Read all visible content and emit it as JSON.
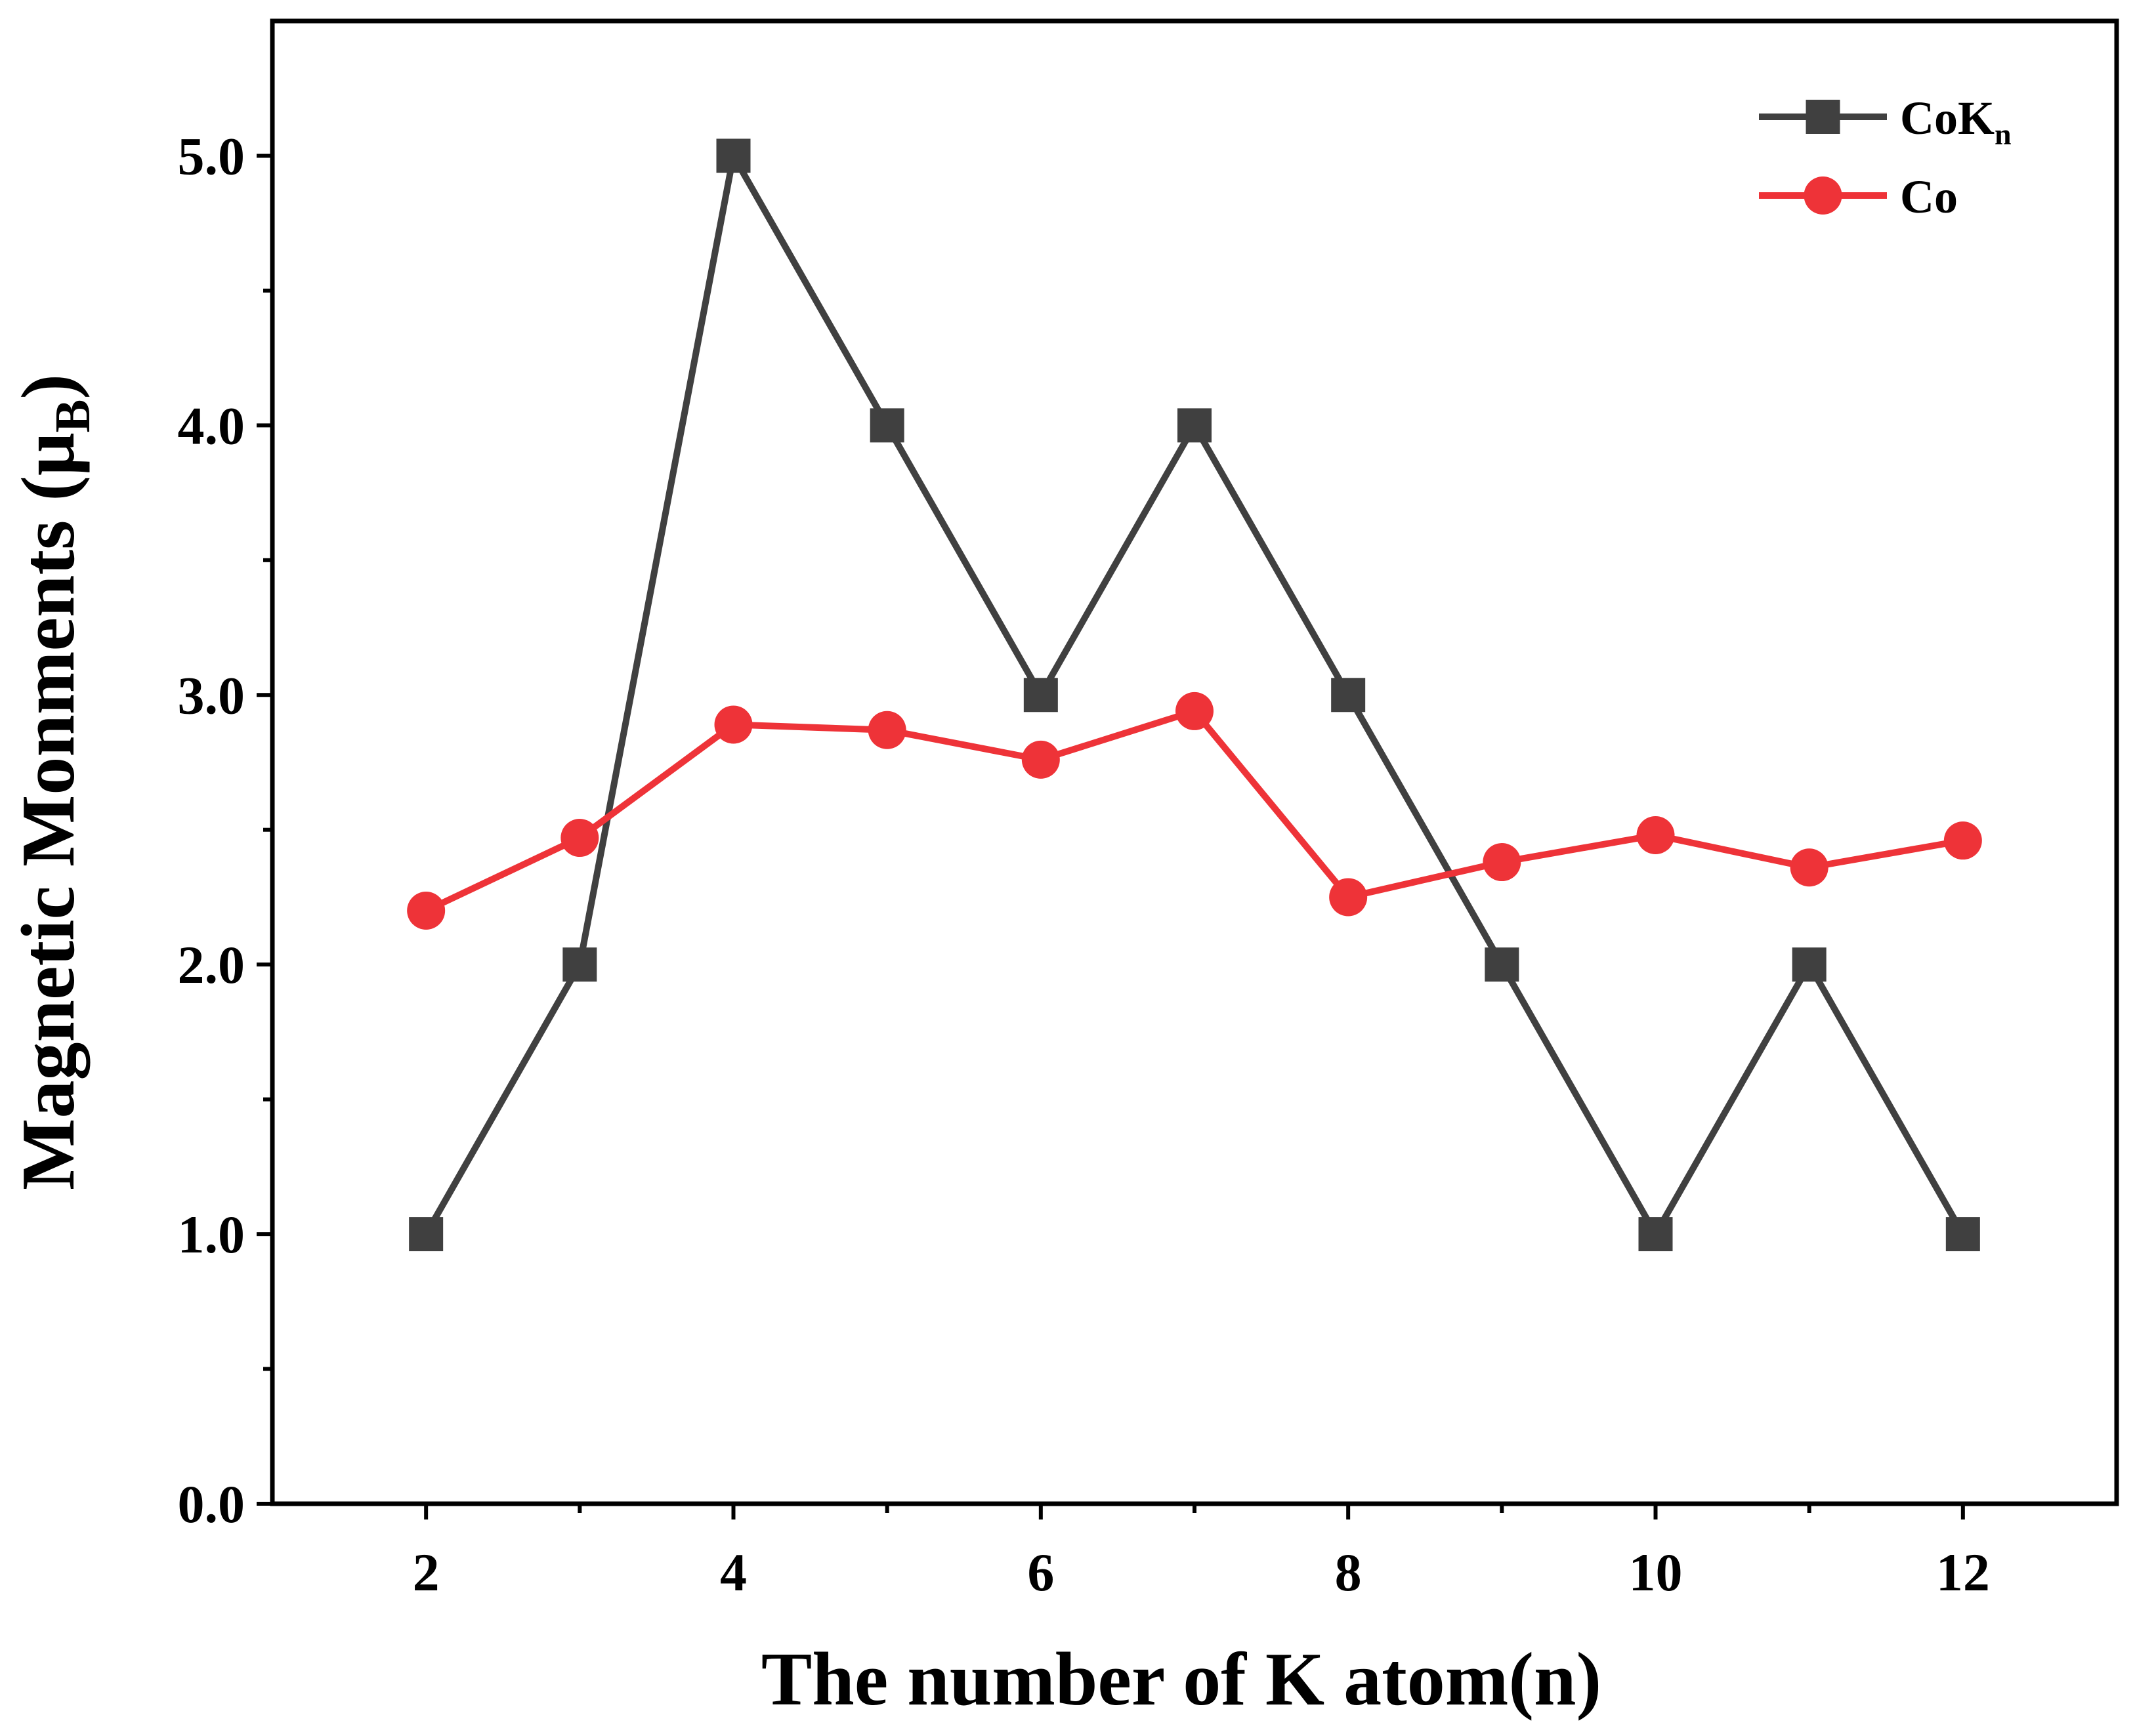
{
  "chart_data": {
    "type": "line",
    "title": "",
    "xlabel": "The number of K atom(n)",
    "ylabel": {
      "main": "Magnetic Monments (μ",
      "sub": "B",
      "close": ")"
    },
    "xlim": [
      1,
      13
    ],
    "ylim": [
      0,
      5.5
    ],
    "x_ticks": [
      2,
      4,
      6,
      8,
      10,
      12
    ],
    "x_minor_ticks": [
      3,
      5,
      7,
      9,
      11
    ],
    "y_ticks": [
      0.0,
      1.0,
      2.0,
      3.0,
      4.0,
      5.0
    ],
    "y_tick_labels": [
      "0.0",
      "1.0",
      "2.0",
      "3.0",
      "4.0",
      "5.0"
    ],
    "y_minor_ticks": [
      0.5,
      1.5,
      2.5,
      3.5,
      4.5
    ],
    "grid": false,
    "legend_position": "top-right",
    "x": [
      2,
      3,
      4,
      5,
      6,
      7,
      8,
      9,
      10,
      11,
      12
    ],
    "series": [
      {
        "name": "CoKn",
        "legend_main": "CoK",
        "legend_sub": "n",
        "marker": "square",
        "color": "#404040",
        "values": [
          1,
          2,
          5,
          4,
          3,
          4,
          3,
          2,
          1,
          2,
          1
        ]
      },
      {
        "name": "Co",
        "legend_main": "Co",
        "legend_sub": "",
        "marker": "circle",
        "color": "#ee3338",
        "values": [
          2.2,
          2.47,
          2.89,
          2.87,
          2.76,
          2.94,
          2.25,
          2.38,
          2.48,
          2.36,
          2.46
        ]
      }
    ]
  }
}
